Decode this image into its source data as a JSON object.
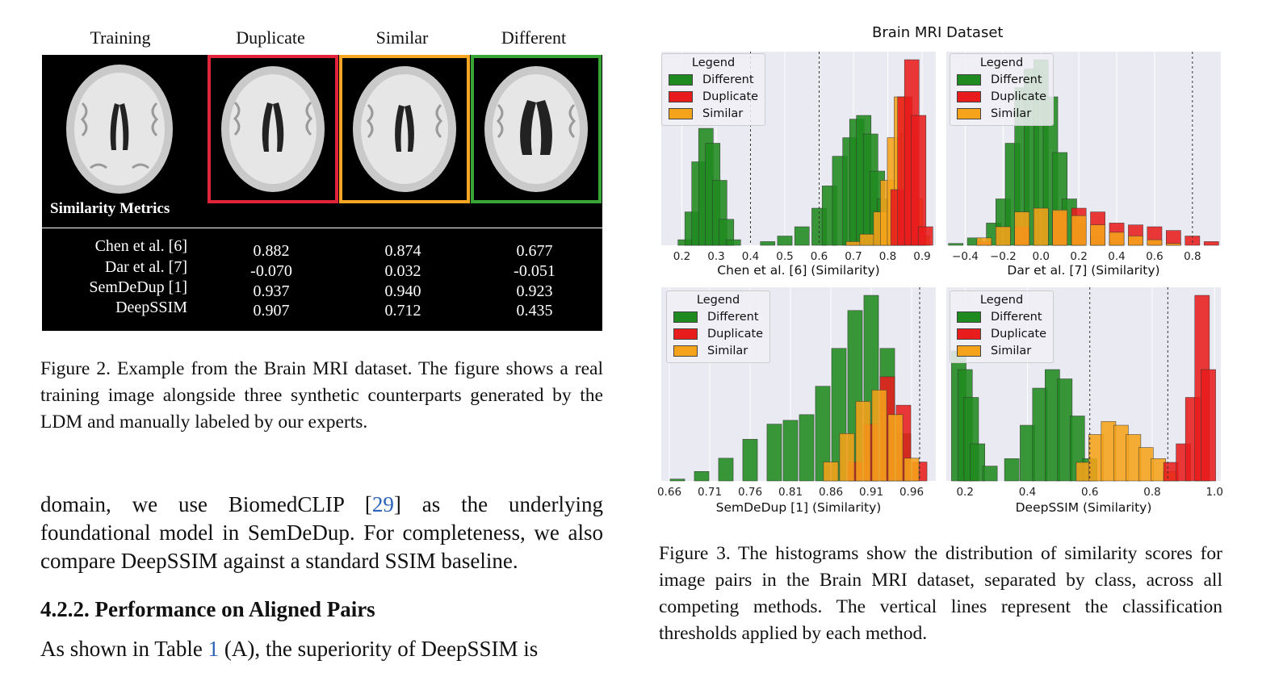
{
  "figure2": {
    "columns": [
      "Training",
      "Duplicate",
      "Similar",
      "Different"
    ],
    "border_colors": {
      "Duplicate": "#e0253a",
      "Similar": "#f5a623",
      "Different": "#3aa537"
    },
    "metrics_title": "Similarity Metrics",
    "metrics": [
      {
        "name": "Chen et al. [6]",
        "values": [
          "0.882",
          "0.874",
          "0.677"
        ]
      },
      {
        "name": "Dar et al. [7]",
        "values": [
          "-0.070",
          "0.032",
          "-0.051"
        ]
      },
      {
        "name": "SemDeDup [1]",
        "values": [
          "0.937",
          "0.940",
          "0.923"
        ]
      },
      {
        "name": "DeepSSIM",
        "values": [
          "0.907",
          "0.712",
          "0.435"
        ]
      }
    ],
    "caption": "Figure 2. Example from the Brain MRI dataset. The figure shows a real training image alongside three synthetic counterparts generated by the LDM and manually labeled by our experts."
  },
  "body": {
    "para1_a": "domain, we use BiomedCLIP [",
    "para1_ref": "29",
    "para1_b": "] as the underlying foundational model in SemDeDup. For completeness, we also compare DeepSSIM against a standard SSIM baseline.",
    "section_heading": "4.2.2. Performance on Aligned Pairs",
    "para2_a": "As shown in Table ",
    "para2_ref": "1",
    "para2_b": " (A), the superiority of DeepSSIM is"
  },
  "figure3": {
    "title": "Brain MRI Dataset",
    "caption": "Figure 3. The histograms show the distribution of similarity scores for image pairs in the Brain MRI dataset, separated by class, across all competing methods. The vertical lines represent the classification thresholds applied by each method.",
    "colors": {
      "Different": "#1f8a1f",
      "Duplicate": "#e81c1c",
      "Similar": "#f5a31a"
    },
    "legend": {
      "title": "Legend",
      "items": [
        "Different",
        "Duplicate",
        "Similar"
      ]
    }
  },
  "chart_data": [
    {
      "type": "bar",
      "title": "",
      "xlabel": "Chen et al. [6] (Similarity)",
      "xlim": [
        0.14,
        0.94
      ],
      "xticks": [
        "0.2",
        "0.3",
        "0.4",
        "0.5",
        "0.6",
        "0.7",
        "0.8",
        "0.9"
      ],
      "thresholds": [
        0.4,
        0.6
      ],
      "series": [
        {
          "name": "Different",
          "x": [
            0.21,
            0.23,
            0.25,
            0.27,
            0.29,
            0.31,
            0.33,
            0.35,
            0.45,
            0.5,
            0.55,
            0.6,
            0.63,
            0.66,
            0.69,
            0.71,
            0.73,
            0.75,
            0.77,
            0.79,
            0.81,
            0.83
          ],
          "y": [
            3,
            18,
            45,
            63,
            55,
            35,
            14,
            3,
            2,
            5,
            10,
            20,
            32,
            48,
            58,
            68,
            70,
            60,
            40,
            25,
            12,
            4
          ]
        },
        {
          "name": "Similar",
          "x": [
            0.7,
            0.74,
            0.78,
            0.8,
            0.82,
            0.84,
            0.86,
            0.88,
            0.9
          ],
          "y": [
            2,
            6,
            18,
            35,
            58,
            80,
            60,
            25,
            5
          ]
        },
        {
          "name": "Duplicate",
          "x": [
            0.83,
            0.85,
            0.87,
            0.89,
            0.91
          ],
          "y": [
            30,
            80,
            100,
            70,
            10
          ]
        }
      ]
    },
    {
      "type": "bar",
      "title": "",
      "xlabel": "Dar et al. [7] (Similarity)",
      "xlim": [
        -0.5,
        0.95
      ],
      "xticks": [
        "−0.4",
        "−0.2",
        "0.0",
        "0.2",
        "0.4",
        "0.6",
        "0.8"
      ],
      "thresholds": [
        0.8
      ],
      "series": [
        {
          "name": "Different",
          "x": [
            -0.45,
            -0.35,
            -0.25,
            -0.2,
            -0.15,
            -0.1,
            -0.05,
            0.0,
            0.05,
            0.1,
            0.15,
            0.2,
            0.3,
            0.4
          ],
          "y": [
            1,
            4,
            12,
            25,
            55,
            85,
            95,
            100,
            80,
            50,
            25,
            12,
            5,
            2
          ]
        },
        {
          "name": "Duplicate",
          "x": [
            -0.3,
            -0.1,
            0.1,
            0.2,
            0.3,
            0.4,
            0.5,
            0.6,
            0.7,
            0.8,
            0.9
          ],
          "y": [
            2,
            10,
            18,
            20,
            18,
            12,
            11,
            10,
            8,
            5,
            2
          ]
        },
        {
          "name": "Similar",
          "x": [
            -0.3,
            -0.2,
            -0.1,
            0.0,
            0.1,
            0.2,
            0.3,
            0.4,
            0.5,
            0.6,
            0.7
          ],
          "y": [
            4,
            10,
            18,
            20,
            19,
            16,
            11,
            7,
            5,
            3,
            1
          ]
        }
      ]
    },
    {
      "type": "bar",
      "title": "",
      "xlabel": "SemDeDup [1] (Similarity)",
      "xlim": [
        0.65,
        0.99
      ],
      "xticks": [
        "0.66",
        "0.71",
        "0.76",
        "0.81",
        "0.86",
        "0.91",
        "0.96"
      ],
      "thresholds": [
        0.97
      ],
      "series": [
        {
          "name": "Different",
          "x": [
            0.67,
            0.7,
            0.73,
            0.76,
            0.79,
            0.81,
            0.83,
            0.85,
            0.87,
            0.89,
            0.91,
            0.93,
            0.95
          ],
          "y": [
            1,
            5,
            12,
            22,
            30,
            32,
            35,
            50,
            70,
            90,
            98,
            70,
            25
          ]
        },
        {
          "name": "Duplicate",
          "x": [
            0.89,
            0.91,
            0.93,
            0.95,
            0.97
          ],
          "y": [
            10,
            30,
            55,
            40,
            10
          ]
        },
        {
          "name": "Similar",
          "x": [
            0.86,
            0.88,
            0.9,
            0.92,
            0.94,
            0.96
          ],
          "y": [
            10,
            25,
            42,
            48,
            35,
            12
          ]
        }
      ]
    },
    {
      "type": "bar",
      "title": "",
      "xlabel": "DeepSSIM (Similarity)",
      "xlim": [
        0.14,
        1.02
      ],
      "xticks": [
        "0.2",
        "0.4",
        "0.6",
        "0.8",
        "1.0"
      ],
      "thresholds": [
        0.6,
        0.85
      ],
      "series": [
        {
          "name": "Different",
          "x": [
            0.18,
            0.2,
            0.22,
            0.24,
            0.28,
            0.35,
            0.4,
            0.44,
            0.48,
            0.52,
            0.56,
            0.6
          ],
          "y": [
            70,
            60,
            45,
            20,
            8,
            12,
            30,
            50,
            60,
            55,
            35,
            12
          ]
        },
        {
          "name": "Similar",
          "x": [
            0.58,
            0.62,
            0.66,
            0.7,
            0.74,
            0.78,
            0.82,
            0.86
          ],
          "y": [
            10,
            25,
            32,
            30,
            25,
            18,
            12,
            5
          ]
        },
        {
          "name": "Duplicate",
          "x": [
            0.86,
            0.9,
            0.93,
            0.96,
            0.98
          ],
          "y": [
            10,
            20,
            45,
            100,
            60
          ]
        }
      ]
    }
  ]
}
